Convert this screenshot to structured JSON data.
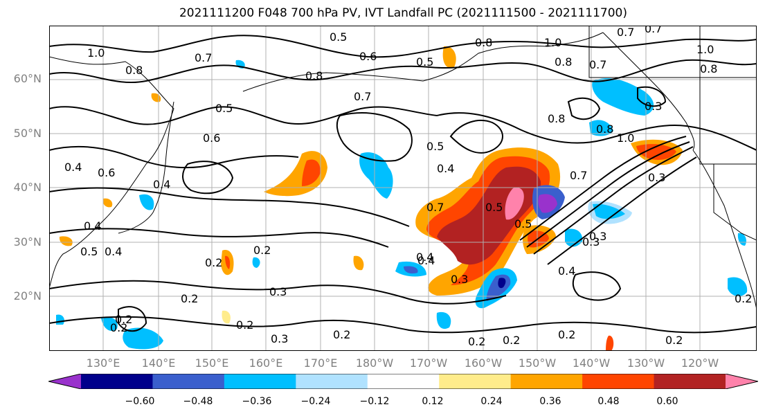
{
  "title": "2021111200 F048 700 hPa PV, IVT Landfall PC (2021111500 - 2021111700)",
  "lat_labels": [
    "60°N",
    "50°N",
    "40°N",
    "30°N",
    "20°N"
  ],
  "lon_labels": [
    "130°E",
    "140°E",
    "150°E",
    "160°E",
    "170°E",
    "180°W",
    "170°W",
    "160°W",
    "150°W",
    "140°W",
    "130°W",
    "120°W"
  ],
  "colorbar": {
    "ticks": [
      "−0.60",
      "−0.48",
      "−0.36",
      "−0.24",
      "−0.12",
      "0.12",
      "0.24",
      "0.36",
      "0.48",
      "0.60"
    ],
    "colors": [
      "#9932cc",
      "#00008b",
      "#3a5fcd",
      "#00bfff",
      "#b0e2ff",
      "#ffffff",
      "#ffec8b",
      "#ffa500",
      "#ff4500",
      "#b22222",
      "#ff82ab"
    ]
  },
  "contour_labels": [
    "1.0",
    "0.5",
    "0.6",
    "0.8",
    "0.5",
    "0.7",
    "0.8",
    "0.7",
    "1.0",
    "0.8",
    "0.7",
    "0.7",
    "1.0",
    "0.8",
    "0.8",
    "0.5",
    "0.8",
    "0.7",
    "0.6",
    "0.6",
    "0.4",
    "0.5",
    "0.4",
    "0.7",
    "0.3",
    "0.8",
    "1.0",
    "0.3",
    "0.4",
    "0.5",
    "0.7",
    "0.5",
    "0.3",
    "0.4",
    "0.4",
    "0.2",
    "0.5",
    "0.4",
    "0.2",
    "0.3",
    "0.2",
    "0.2",
    "0.3",
    "0.2",
    "0.2",
    "0.2",
    "0.2",
    "0.3",
    "0.4",
    "0.2",
    "0.2",
    "0.4",
    "0.2",
    "0.3",
    "0.2"
  ]
}
